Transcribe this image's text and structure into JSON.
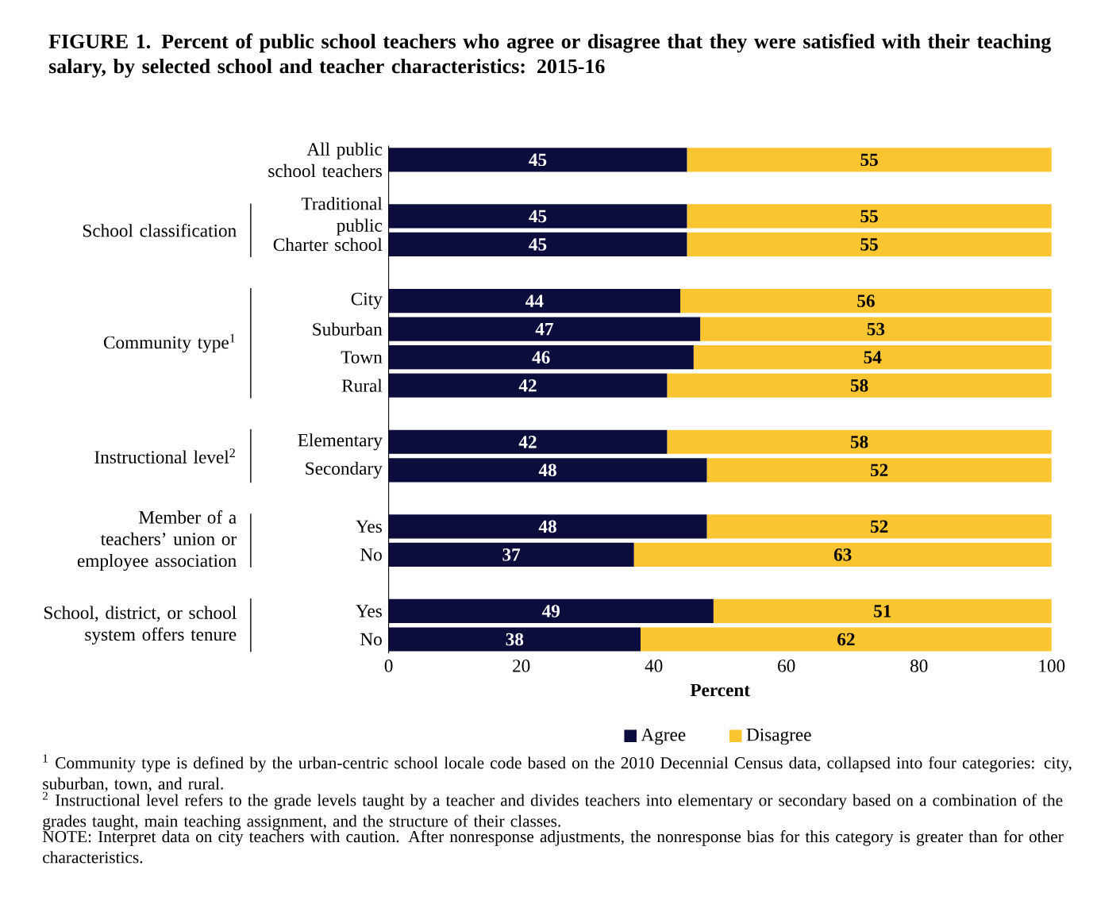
{
  "chart_data": {
    "type": "bar",
    "orientation": "horizontal",
    "stacked": true,
    "data_labels": true,
    "legend": "bottom",
    "title": "FIGURE 1. Percent of public school teachers who agree or disagree that they were satisfied with their teaching salary, by selected school and teacher characteristics: 2015-16",
    "xlabel": "Percent",
    "categories": [
      "All public school teachers",
      "Traditional public",
      "Charter school",
      "City",
      "Suburban",
      "Town",
      "Rural",
      "Elementary",
      "Secondary",
      "Yes",
      "No",
      "Yes",
      "No"
    ],
    "series": [
      {
        "name": "Agree",
        "color": "#0d0d3d",
        "values": [
          45,
          45,
          45,
          44,
          47,
          46,
          42,
          42,
          48,
          48,
          37,
          49,
          38
        ]
      },
      {
        "name": "Disagree",
        "color": "#fbc531",
        "values": [
          55,
          55,
          55,
          56,
          53,
          54,
          58,
          58,
          52,
          52,
          63,
          51,
          62
        ]
      }
    ],
    "xlim": [
      0,
      100
    ],
    "xticks": [
      0,
      20,
      40,
      60,
      80,
      100
    ],
    "annotations": [
      "School classification",
      "Community type$^{1}$",
      "Instructional level$^{2}$",
      "Member of a teachers’ union or employee association",
      "School, district, or school system offers tenure",
      "$^{1}$ Community type is defined by the urban-centric school locale code based on the 2010 Decennial Census data, collapsed into four categories: city, suburban, town, and rural.",
      "$^{2}$ Instructional level refers to the grade levels taught by a teacher and divides teachers into elementary or secondary based on a combination of the grades taught, main teaching assignment, and the structure of their classes.",
      "NOTE: Interpret data on city teachers with caution. After nonresponse adjustments, the nonresponse bias for this category is greater than for other characteristics."
    ]
  }
}
